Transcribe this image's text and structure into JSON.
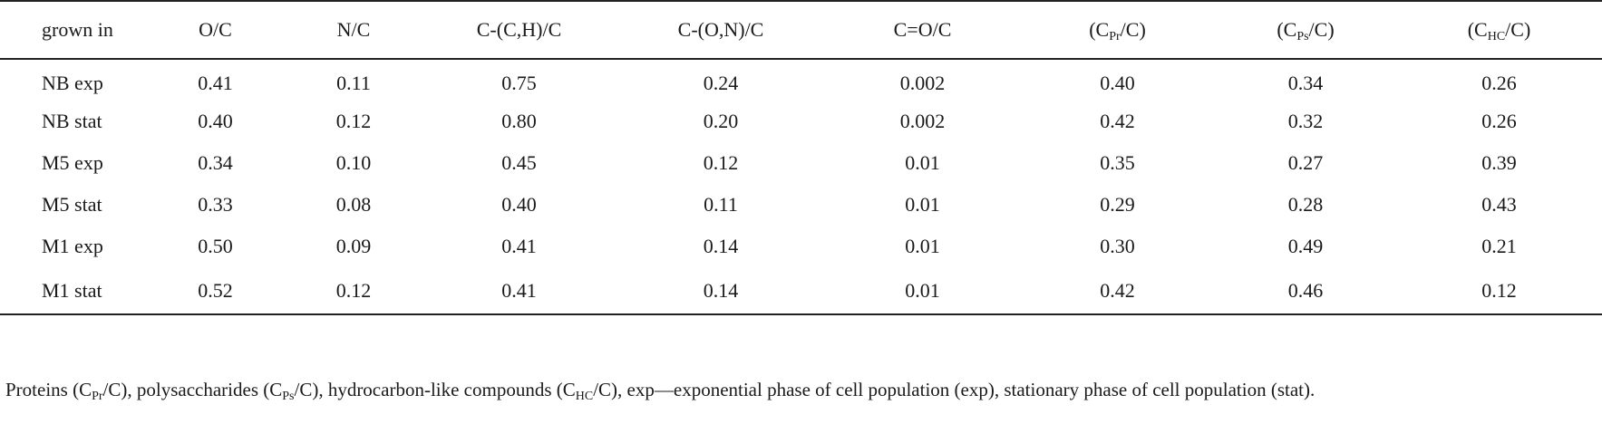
{
  "table": {
    "headers": [
      {
        "text": "grown in"
      },
      {
        "text": "O/C"
      },
      {
        "text": "N/C"
      },
      {
        "text": "C-(C,H)/C"
      },
      {
        "text": "C-(O,N)/C"
      },
      {
        "text": "C=O/C"
      },
      {
        "pre": "(C",
        "sub": "Pr",
        "post": "/C)"
      },
      {
        "pre": "(C",
        "sub": "Ps",
        "post": "/C)"
      },
      {
        "pre": "(C",
        "sub": "HC",
        "post": "/C)"
      }
    ],
    "rows": [
      [
        "NB exp",
        "0.41",
        "0.11",
        "0.75",
        "0.24",
        "0.002",
        "0.40",
        "0.34",
        "0.26"
      ],
      [
        "NB stat",
        "0.40",
        "0.12",
        "0.80",
        "0.20",
        "0.002",
        "0.42",
        "0.32",
        "0.26"
      ],
      [
        "M5 exp",
        "0.34",
        "0.10",
        "0.45",
        "0.12",
        "0.01",
        "0.35",
        "0.27",
        "0.39"
      ],
      [
        "M5 stat",
        "0.33",
        "0.08",
        "0.40",
        "0.11",
        "0.01",
        "0.29",
        "0.28",
        "0.43"
      ],
      [
        "M1 exp",
        "0.50",
        "0.09",
        "0.41",
        "0.14",
        "0.01",
        "0.30",
        "0.49",
        "0.21"
      ],
      [
        "M1 stat",
        "0.52",
        "0.12",
        "0.41",
        "0.14",
        "0.01",
        "0.42",
        "0.46",
        "0.12"
      ]
    ]
  },
  "footnote": {
    "t1": "Proteins (C",
    "s1": "Pr",
    "t2": "/C), polysaccharides (C",
    "s2": "Ps",
    "t3": "/C), hydrocarbon-like compounds (C",
    "s3": "HC",
    "t4": "/C), exp—exponential phase of cell population (exp), stationary phase of cell population (stat)."
  }
}
